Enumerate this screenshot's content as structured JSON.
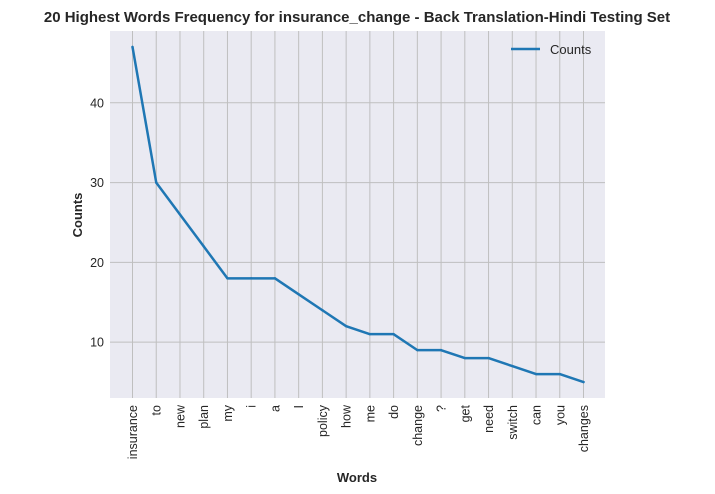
{
  "chart_data": {
    "type": "line",
    "title": "20 Highest Words Frequency for insurance_change - Back Translation-Hindi Testing Set",
    "xlabel": "Words",
    "ylabel": "Counts",
    "categories": [
      "insurance",
      "to",
      "new",
      "plan",
      "my",
      "i",
      "a",
      "I",
      "policy",
      "how",
      "me",
      "do",
      "change",
      "?",
      "get",
      "need",
      "switch",
      "can",
      "you",
      "changes"
    ],
    "series": [
      {
        "name": "Counts",
        "color": "#1f77b4",
        "values": [
          47,
          30,
          26,
          22,
          18,
          18,
          18,
          16,
          14,
          12,
          11,
          11,
          9,
          9,
          8,
          8,
          7,
          6,
          6,
          5
        ]
      }
    ],
    "yticks": [
      10,
      20,
      30,
      40
    ],
    "ylim": [
      3.0,
      49.0
    ],
    "grid": true,
    "legend_position": "top-right",
    "background_color": "#eaeaf2",
    "grid_color": "#bfbfbf"
  }
}
